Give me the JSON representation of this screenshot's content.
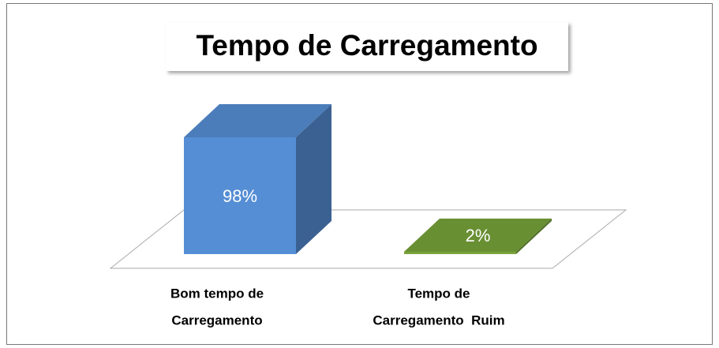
{
  "chart_data": {
    "type": "bar3d",
    "title": "Tempo de Carregamento",
    "categories": [
      [
        "Bom tempo de",
        "Carregamento"
      ],
      [
        "Tempo de",
        "Carregamento  Ruim"
      ]
    ],
    "values": [
      98,
      2
    ],
    "value_labels": [
      "98%",
      "2%"
    ],
    "colors": [
      "#558ed5",
      "#77a33a"
    ]
  }
}
